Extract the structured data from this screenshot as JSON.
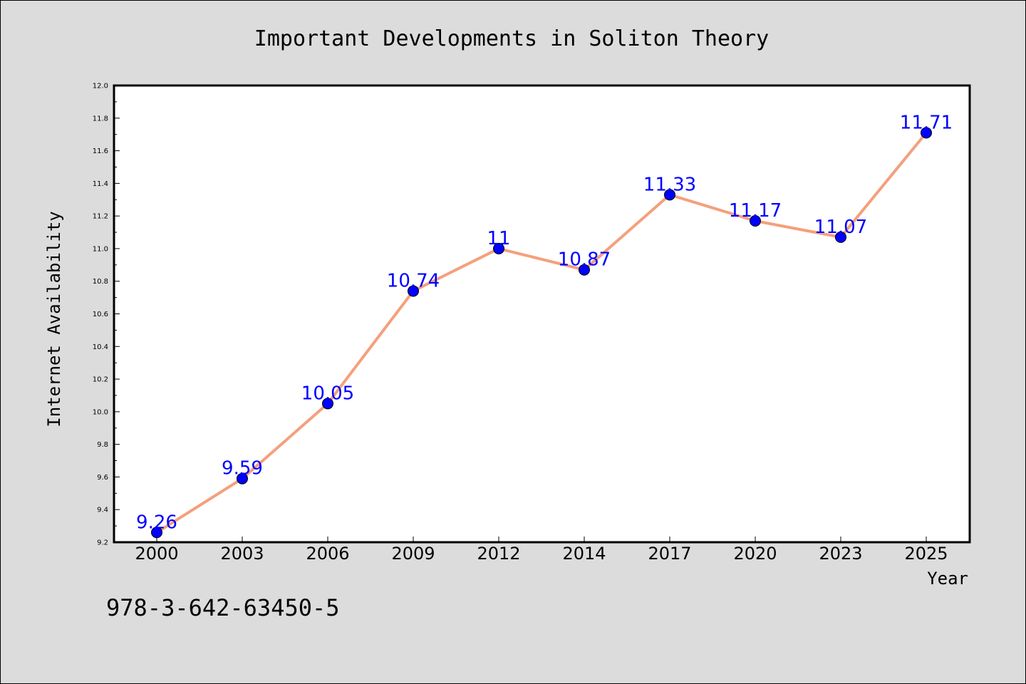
{
  "chart_data": {
    "type": "line",
    "title": "Important Developments in Soliton Theory",
    "xlabel": "Year",
    "ylabel": "Internet Availability",
    "categories": [
      "2000",
      "2003",
      "2006",
      "2009",
      "2012",
      "2014",
      "2017",
      "2020",
      "2023",
      "2025"
    ],
    "values": [
      9.26,
      9.59,
      10.05,
      10.74,
      11,
      10.87,
      11.33,
      11.17,
      11.07,
      11.71
    ],
    "data_labels": [
      "9.26",
      "9.59",
      "10.05",
      "10.74",
      "11",
      "10.87",
      "11.33",
      "11.17",
      "11.07",
      "11.71"
    ],
    "ylim": [
      9.2,
      12.0
    ],
    "yticks": [
      "9.2",
      "9.4",
      "9.6",
      "9.8",
      "10.0",
      "10.2",
      "10.4",
      "10.6",
      "10.8",
      "11.0",
      "11.2",
      "11.4",
      "11.6",
      "11.8",
      "12.0"
    ],
    "grid": false,
    "line_color": "#f4a07c",
    "marker_color": "#0000ff",
    "label_color": "#0000ff"
  },
  "footer": {
    "isbn": "978-3-642-63450-5"
  }
}
